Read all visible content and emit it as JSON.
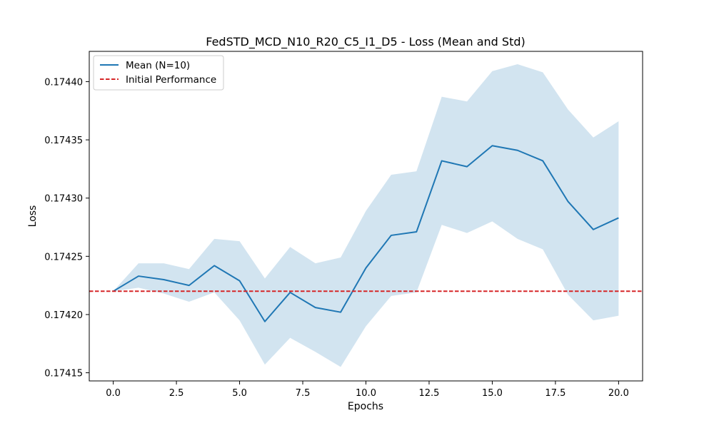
{
  "chart_data": {
    "type": "line",
    "title": "FedSTD_MCD_N10_R20_C5_I1_D5 - Loss (Mean and Std)",
    "xlabel": "Epochs",
    "ylabel": "Loss",
    "xlim": [
      -0.95,
      20.95
    ],
    "ylim": [
      0.174143,
      0.174426
    ],
    "xticks": [
      0,
      2.5,
      5,
      7.5,
      10,
      12.5,
      15,
      17.5,
      20
    ],
    "xtick_labels": [
      "0.0",
      "2.5",
      "5.0",
      "7.5",
      "10.0",
      "12.5",
      "15.0",
      "17.5",
      "20.0"
    ],
    "yticks": [
      0.17415,
      0.1742,
      0.17425,
      0.1743,
      0.17435,
      0.1744
    ],
    "ytick_labels": [
      "0.17415",
      "0.17420",
      "0.17425",
      "0.17430",
      "0.17435",
      "0.17440"
    ],
    "grid": false,
    "legend_position": "top-left",
    "x": [
      0,
      1,
      2,
      3,
      4,
      5,
      6,
      7,
      8,
      9,
      10,
      11,
      12,
      13,
      14,
      15,
      16,
      17,
      18,
      19,
      20
    ],
    "series": [
      {
        "name": "Mean (N=10)",
        "style": "solid",
        "color": "#1f77b4",
        "values": [
          0.17422,
          0.174233,
          0.17423,
          0.174225,
          0.174242,
          0.174229,
          0.174194,
          0.174219,
          0.174206,
          0.174202,
          0.17424,
          0.174268,
          0.174271,
          0.174332,
          0.174327,
          0.174345,
          0.174341,
          0.174332,
          0.174297,
          0.174273,
          0.174283
        ]
      }
    ],
    "std_band": {
      "color": "#1f77b4",
      "opacity": 0.2,
      "upper": [
        0.17422,
        0.174244,
        0.174244,
        0.174239,
        0.174265,
        0.174263,
        0.174231,
        0.174258,
        0.174244,
        0.174249,
        0.174289,
        0.17432,
        0.174323,
        0.174387,
        0.174383,
        0.174409,
        0.174415,
        0.174408,
        0.174376,
        0.174352,
        0.174366
      ],
      "lower": [
        0.17422,
        0.174223,
        0.174218,
        0.174211,
        0.174219,
        0.174195,
        0.174157,
        0.17418,
        0.174168,
        0.174155,
        0.17419,
        0.174216,
        0.174219,
        0.174277,
        0.17427,
        0.17428,
        0.174265,
        0.174256,
        0.174217,
        0.174195,
        0.174199
      ]
    },
    "reference_line": {
      "name": "Initial Performance",
      "value": 0.17422,
      "style": "dashed",
      "color": "#d62728"
    }
  }
}
